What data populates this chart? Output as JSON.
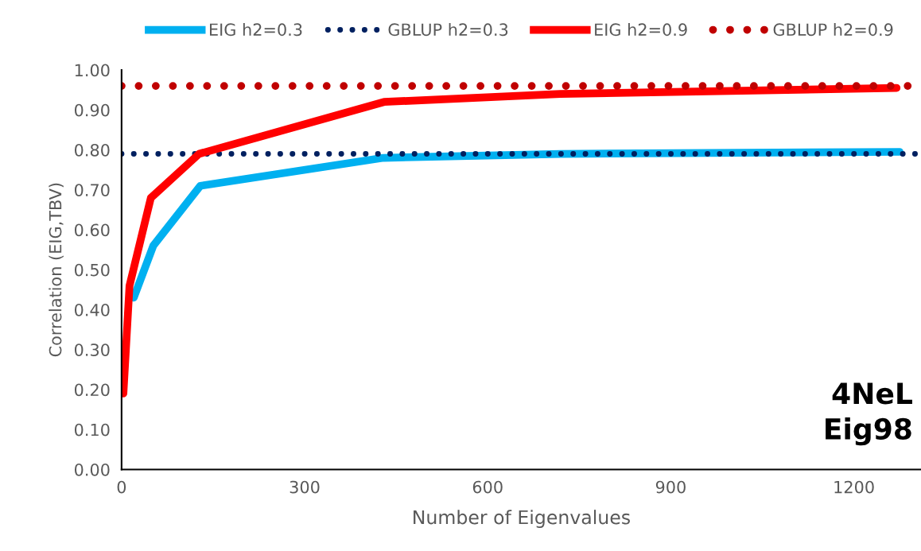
{
  "chart_data": {
    "type": "line",
    "xlabel": "Number of Eigenvalues",
    "ylabel": "Correlation (EIG,TBV)",
    "series": [
      {
        "name": "EIG h2=0.3",
        "color": "#00b0f0",
        "line_style": "solid",
        "x": [
          20,
          52,
          129,
          429,
          719,
          1275
        ],
        "values": [
          0.43,
          0.56,
          0.71,
          0.78,
          0.79,
          0.795
        ]
      },
      {
        "name": "GBLUP h2=0.3",
        "color": "#002060",
        "line_style": "dotted",
        "x": [
          0,
          1310
        ],
        "values": [
          0.79,
          0.79
        ]
      },
      {
        "name": "EIG h2=0.9",
        "color": "#ff0000",
        "line_style": "solid",
        "x": [
          3,
          13,
          48,
          127,
          430,
          719,
          1270
        ],
        "values": [
          0.19,
          0.46,
          0.68,
          0.79,
          0.92,
          0.94,
          0.955
        ]
      },
      {
        "name": "GBLUP h2=0.9",
        "color": "#c00000",
        "line_style": "dotted",
        "x": [
          0,
          1310
        ],
        "values": [
          0.96,
          0.96
        ]
      }
    ],
    "xlim": [
      0,
      1310
    ],
    "xticks": [
      0,
      300,
      600,
      900,
      1200
    ],
    "ylim": [
      0,
      1.0
    ],
    "yticks": [
      {
        "value": 0,
        "label": "0.00"
      },
      {
        "value": 0.1,
        "label": "0.10"
      },
      {
        "value": 0.2,
        "label": "0.20"
      },
      {
        "value": 0.3,
        "label": "0.30"
      },
      {
        "value": 0.4,
        "label": "0.40"
      },
      {
        "value": 0.5,
        "label": "0.50"
      },
      {
        "value": 0.6,
        "label": "0.60"
      },
      {
        "value": 0.7,
        "label": "0.70"
      },
      {
        "value": 0.8,
        "label": "0.80"
      },
      {
        "value": 0.9,
        "label": "0.90"
      },
      {
        "value": 1.0,
        "label": "1.00"
      }
    ],
    "legend": "top",
    "grid": false,
    "annotations": [
      "4NeL\nEig98"
    ]
  }
}
